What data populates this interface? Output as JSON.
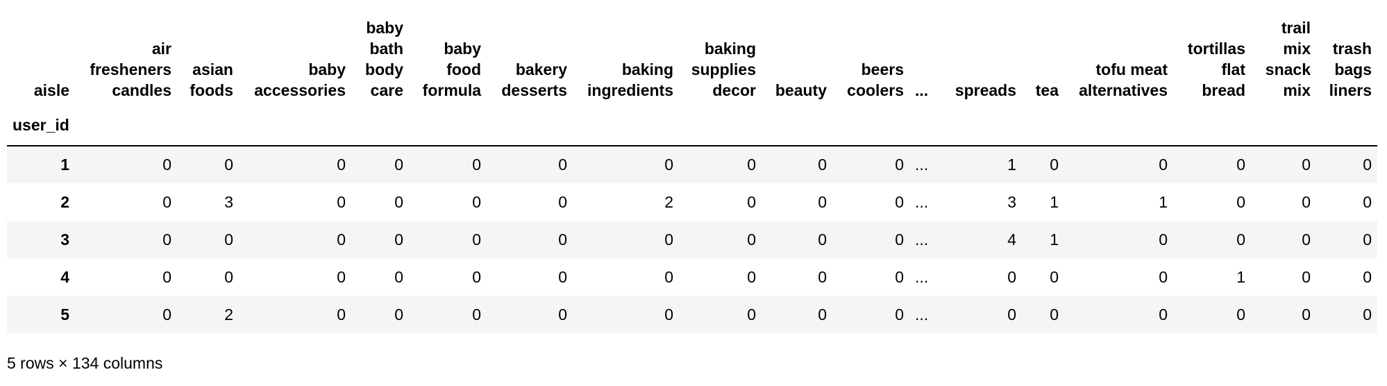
{
  "index_name": "aisle",
  "index_label": "user_id",
  "columns": [
    "air fresheners candles",
    "asian foods",
    "baby accessories",
    "baby bath body care",
    "baby food formula",
    "bakery desserts",
    "baking ingredients",
    "baking supplies decor",
    "beauty",
    "beers coolers",
    "...",
    "spreads",
    "tea",
    "tofu meat alternatives",
    "tortillas flat bread",
    "trail mix snack mix",
    "trash bags liners"
  ],
  "rows": [
    {
      "index": 1,
      "cells": [
        0,
        0,
        0,
        0,
        0,
        0,
        0,
        0,
        0,
        0,
        "...",
        1,
        0,
        0,
        0,
        0,
        0
      ]
    },
    {
      "index": 2,
      "cells": [
        0,
        3,
        0,
        0,
        0,
        0,
        2,
        0,
        0,
        0,
        "...",
        3,
        1,
        1,
        0,
        0,
        0
      ]
    },
    {
      "index": 3,
      "cells": [
        0,
        0,
        0,
        0,
        0,
        0,
        0,
        0,
        0,
        0,
        "...",
        4,
        1,
        0,
        0,
        0,
        0
      ]
    },
    {
      "index": 4,
      "cells": [
        0,
        0,
        0,
        0,
        0,
        0,
        0,
        0,
        0,
        0,
        "...",
        0,
        0,
        0,
        1,
        0,
        0
      ]
    },
    {
      "index": 5,
      "cells": [
        0,
        2,
        0,
        0,
        0,
        0,
        0,
        0,
        0,
        0,
        "...",
        0,
        0,
        0,
        0,
        0,
        0
      ]
    }
  ],
  "footer": "5 rows × 134 columns"
}
